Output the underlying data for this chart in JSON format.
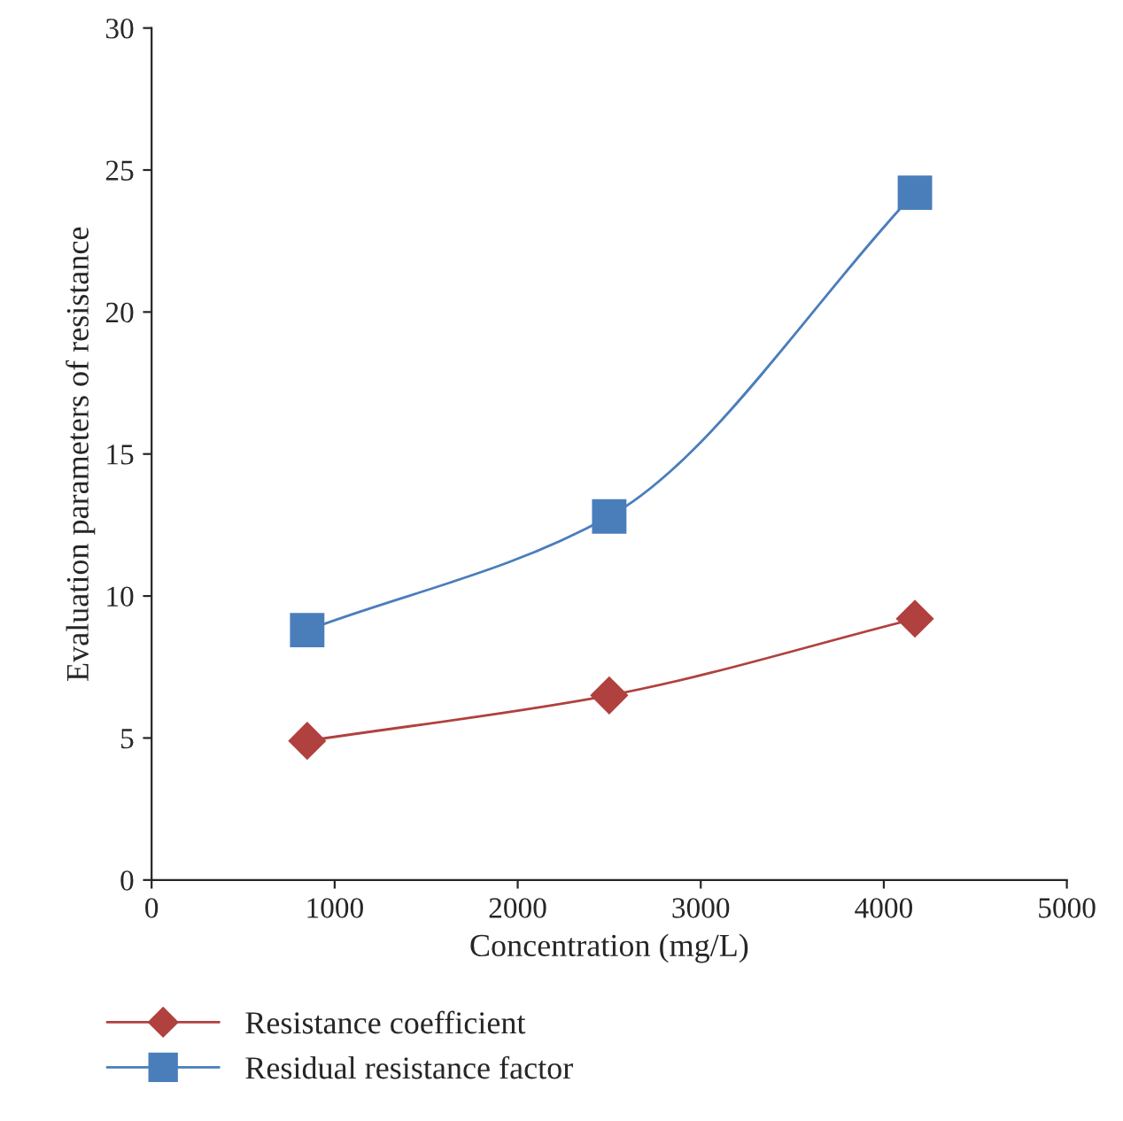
{
  "chart_data": {
    "type": "line",
    "xlabel": "Concentration (mg/L)",
    "ylabel": "Evaluation parameters of resistance",
    "x": [
      850,
      2500,
      4170
    ],
    "series": [
      {
        "name": "Resistance coefficient",
        "color": "#b0413e",
        "marker": "diamond",
        "values": [
          4.9,
          6.5,
          9.2
        ]
      },
      {
        "name": "Residual resistance factor",
        "color": "#4a7ebb",
        "marker": "square",
        "values": [
          8.8,
          12.8,
          24.2
        ]
      }
    ],
    "xlim": [
      0,
      5000
    ],
    "xticks": [
      0,
      1000,
      2000,
      3000,
      4000,
      5000
    ],
    "ylim": [
      0,
      30
    ],
    "yticks": [
      0,
      5,
      10,
      15,
      20,
      25,
      30
    ],
    "grid": false,
    "legend": "bottom",
    "line_style": "solid"
  }
}
